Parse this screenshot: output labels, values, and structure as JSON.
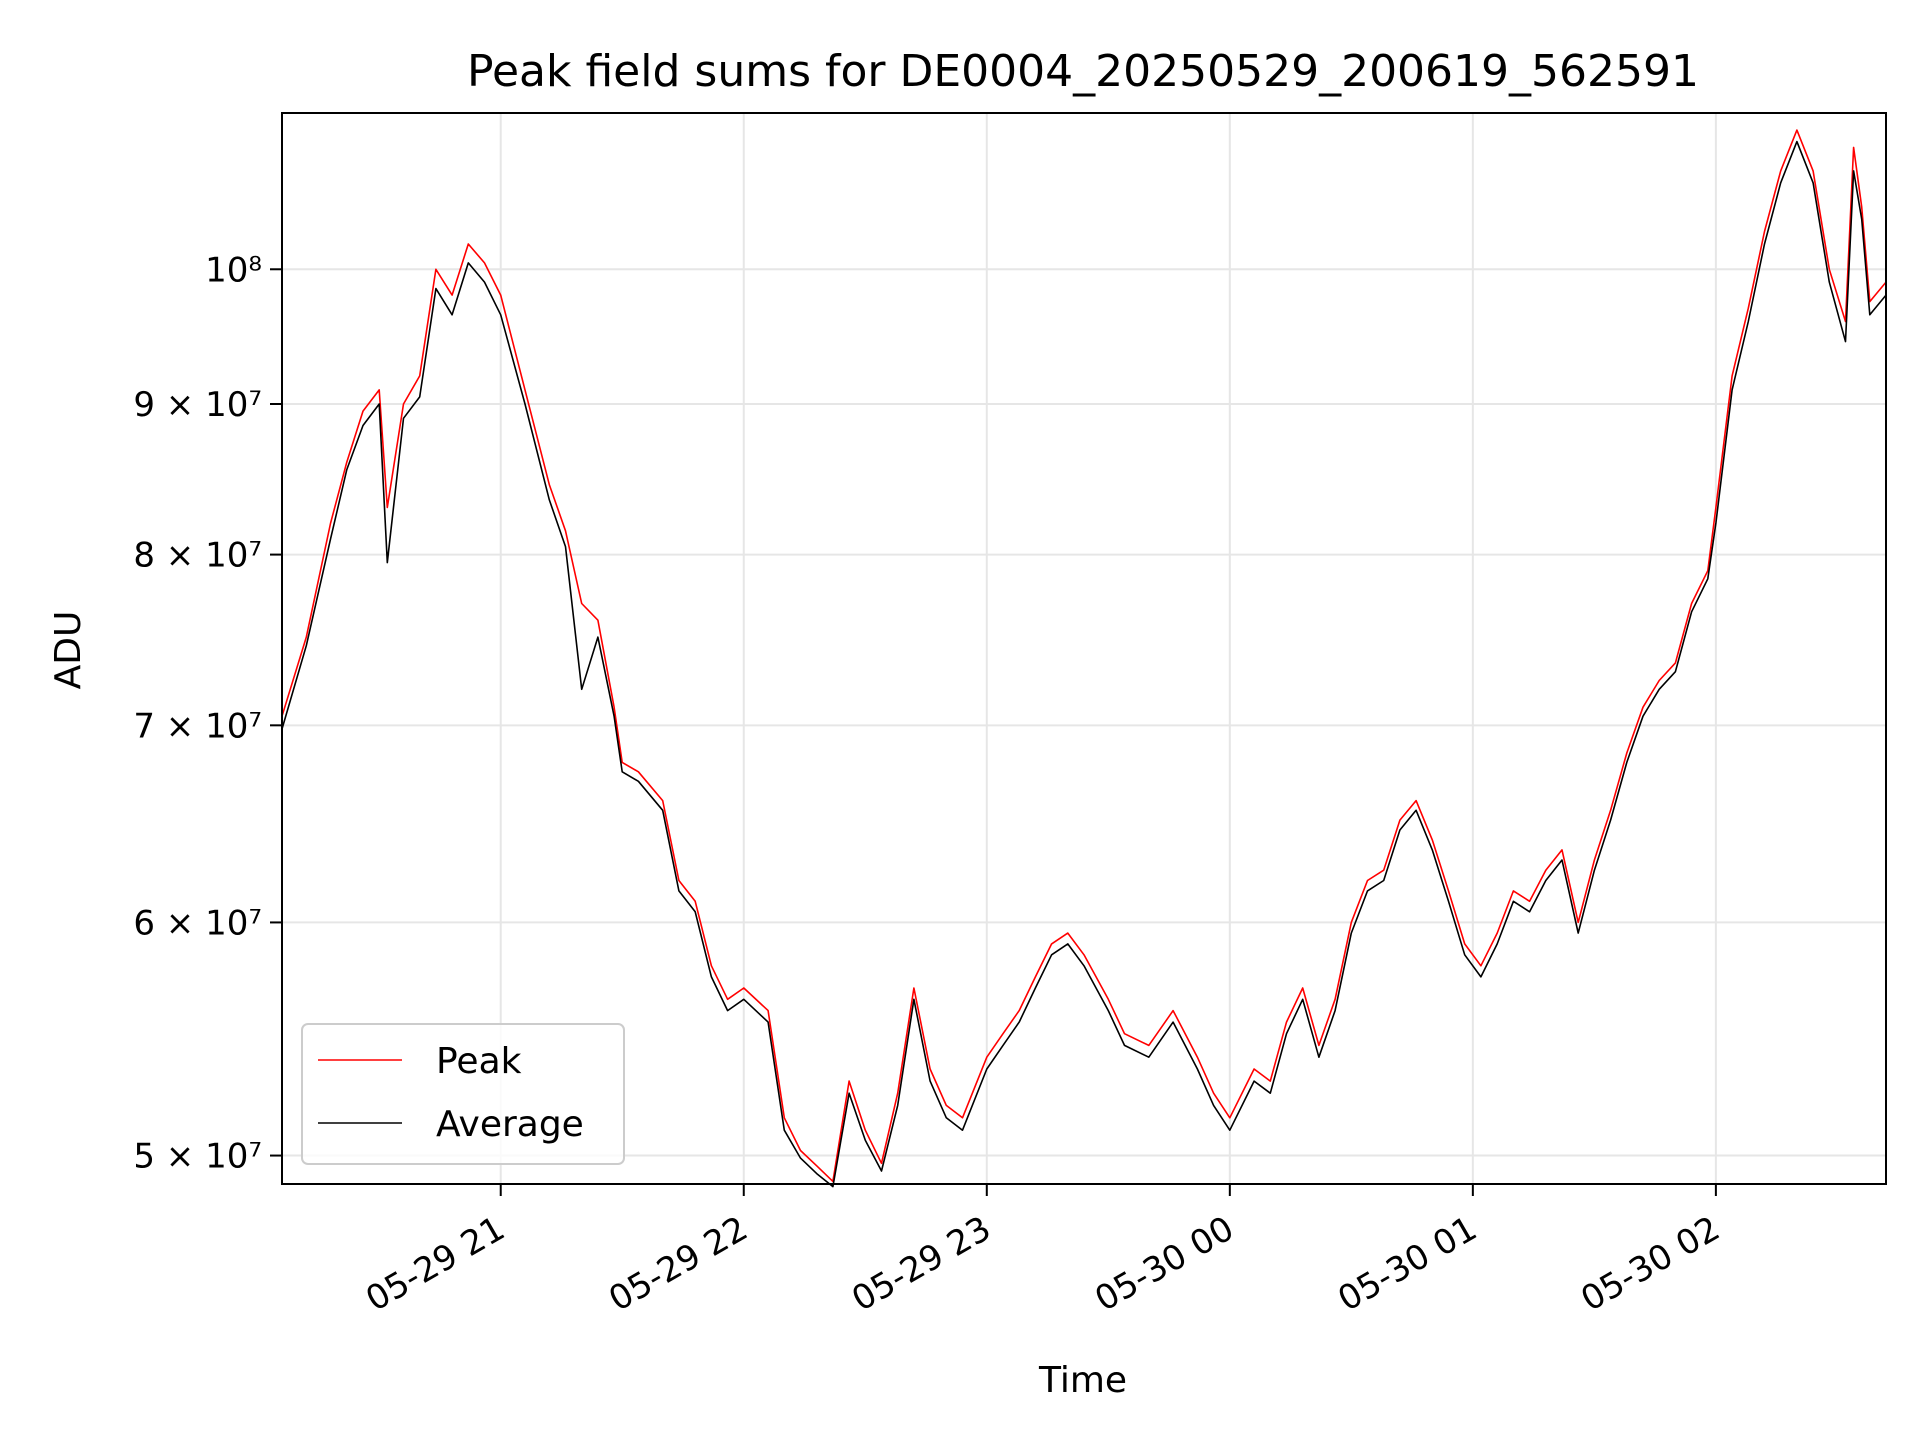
{
  "chart_data": {
    "type": "line",
    "title": "Peak field sums for DE0004_20250529_200619_562591",
    "xlabel": "Time",
    "ylabel": "ADU",
    "yscale": "log",
    "grid": true,
    "legend_position": "lower-left",
    "xlim": [
      "2025-05-29 20:06",
      "2025-05-30 02:42"
    ],
    "ylim": [
      48900000,
      113000000
    ],
    "x_ticks": [
      {
        "time": "2025-05-29 21:00",
        "label": "05-29 21"
      },
      {
        "time": "2025-05-29 22:00",
        "label": "05-29 22"
      },
      {
        "time": "2025-05-29 23:00",
        "label": "05-29 23"
      },
      {
        "time": "2025-05-30 00:00",
        "label": "05-30 00"
      },
      {
        "time": "2025-05-30 01:00",
        "label": "05-30 01"
      },
      {
        "time": "2025-05-30 02:00",
        "label": "05-30 02"
      }
    ],
    "y_ticks": [
      {
        "value": 50000000,
        "label": "5 × 10⁷"
      },
      {
        "value": 60000000,
        "label": "6 × 10⁷"
      },
      {
        "value": 70000000,
        "label": "7 × 10⁷"
      },
      {
        "value": 80000000,
        "label": "8 × 10⁷"
      },
      {
        "value": 90000000,
        "label": "9 × 10⁷"
      },
      {
        "value": 100000000,
        "label": "10⁸"
      }
    ],
    "series": [
      {
        "name": "Peak",
        "color": "#ff0000",
        "points": [
          [
            "2025-05-29 20:06",
            70500000
          ],
          [
            "2025-05-29 20:12",
            75000000
          ],
          [
            "2025-05-29 20:18",
            82000000
          ],
          [
            "2025-05-29 20:22",
            86000000
          ],
          [
            "2025-05-29 20:26",
            89500000
          ],
          [
            "2025-05-29 20:30",
            91000000
          ],
          [
            "2025-05-29 20:32",
            83000000
          ],
          [
            "2025-05-29 20:36",
            90000000
          ],
          [
            "2025-05-29 20:40",
            92000000
          ],
          [
            "2025-05-29 20:44",
            100000000
          ],
          [
            "2025-05-29 20:48",
            98000000
          ],
          [
            "2025-05-29 20:52",
            102000000
          ],
          [
            "2025-05-29 20:56",
            100500000
          ],
          [
            "2025-05-29 21:00",
            98000000
          ],
          [
            "2025-05-29 21:06",
            91000000
          ],
          [
            "2025-05-29 21:12",
            84500000
          ],
          [
            "2025-05-29 21:16",
            81500000
          ],
          [
            "2025-05-29 21:20",
            77000000
          ],
          [
            "2025-05-29 21:24",
            76000000
          ],
          [
            "2025-05-29 21:28",
            71000000
          ],
          [
            "2025-05-29 21:30",
            68000000
          ],
          [
            "2025-05-29 21:34",
            67500000
          ],
          [
            "2025-05-29 21:40",
            66000000
          ],
          [
            "2025-05-29 21:44",
            62000000
          ],
          [
            "2025-05-29 21:48",
            61000000
          ],
          [
            "2025-05-29 21:52",
            58000000
          ],
          [
            "2025-05-29 21:56",
            56500000
          ],
          [
            "2025-05-29 22:00",
            57000000
          ],
          [
            "2025-05-29 22:06",
            56000000
          ],
          [
            "2025-05-29 22:10",
            51500000
          ],
          [
            "2025-05-29 22:14",
            50200000
          ],
          [
            "2025-05-29 22:18",
            49600000
          ],
          [
            "2025-05-29 22:22",
            49000000
          ],
          [
            "2025-05-29 22:26",
            53000000
          ],
          [
            "2025-05-29 22:30",
            51000000
          ],
          [
            "2025-05-29 22:34",
            49700000
          ],
          [
            "2025-05-29 22:38",
            52500000
          ],
          [
            "2025-05-29 22:42",
            57000000
          ],
          [
            "2025-05-29 22:46",
            53500000
          ],
          [
            "2025-05-29 22:50",
            52000000
          ],
          [
            "2025-05-29 22:54",
            51500000
          ],
          [
            "2025-05-29 23:00",
            54000000
          ],
          [
            "2025-05-29 23:04",
            55000000
          ],
          [
            "2025-05-29 23:08",
            56000000
          ],
          [
            "2025-05-29 23:12",
            57500000
          ],
          [
            "2025-05-29 23:16",
            59000000
          ],
          [
            "2025-05-29 23:20",
            59500000
          ],
          [
            "2025-05-29 23:24",
            58500000
          ],
          [
            "2025-05-29 23:30",
            56500000
          ],
          [
            "2025-05-29 23:34",
            55000000
          ],
          [
            "2025-05-29 23:40",
            54500000
          ],
          [
            "2025-05-29 23:46",
            56000000
          ],
          [
            "2025-05-29 23:52",
            54000000
          ],
          [
            "2025-05-29 23:56",
            52500000
          ],
          [
            "2025-05-30 00:00",
            51500000
          ],
          [
            "2025-05-30 00:06",
            53500000
          ],
          [
            "2025-05-30 00:10",
            53000000
          ],
          [
            "2025-05-30 00:14",
            55500000
          ],
          [
            "2025-05-30 00:18",
            57000000
          ],
          [
            "2025-05-30 00:22",
            54500000
          ],
          [
            "2025-05-30 00:26",
            56500000
          ],
          [
            "2025-05-30 00:30",
            60000000
          ],
          [
            "2025-05-30 00:34",
            62000000
          ],
          [
            "2025-05-30 00:38",
            62500000
          ],
          [
            "2025-05-30 00:42",
            65000000
          ],
          [
            "2025-05-30 00:46",
            66000000
          ],
          [
            "2025-05-30 00:50",
            64000000
          ],
          [
            "2025-05-30 00:54",
            61500000
          ],
          [
            "2025-05-30 00:58",
            59000000
          ],
          [
            "2025-05-30 01:02",
            58000000
          ],
          [
            "2025-05-30 01:06",
            59500000
          ],
          [
            "2025-05-30 01:10",
            61500000
          ],
          [
            "2025-05-30 01:14",
            61000000
          ],
          [
            "2025-05-30 01:18",
            62500000
          ],
          [
            "2025-05-30 01:22",
            63500000
          ],
          [
            "2025-05-30 01:26",
            60000000
          ],
          [
            "2025-05-30 01:30",
            63000000
          ],
          [
            "2025-05-30 01:34",
            65500000
          ],
          [
            "2025-05-30 01:38",
            68500000
          ],
          [
            "2025-05-30 01:42",
            71000000
          ],
          [
            "2025-05-30 01:46",
            72500000
          ],
          [
            "2025-05-30 01:50",
            73500000
          ],
          [
            "2025-05-30 01:54",
            77000000
          ],
          [
            "2025-05-30 01:58",
            79000000
          ],
          [
            "2025-05-30 02:00",
            83000000
          ],
          [
            "2025-05-30 02:04",
            92000000
          ],
          [
            "2025-05-30 02:08",
            97000000
          ],
          [
            "2025-05-30 02:12",
            103000000
          ],
          [
            "2025-05-30 02:16",
            108000000
          ],
          [
            "2025-05-30 02:20",
            111500000
          ],
          [
            "2025-05-30 02:24",
            108000000
          ],
          [
            "2025-05-30 02:28",
            100000000
          ],
          [
            "2025-05-30 02:32",
            96000000
          ],
          [
            "2025-05-30 02:34",
            110000000
          ],
          [
            "2025-05-30 02:36",
            105000000
          ],
          [
            "2025-05-30 02:38",
            97500000
          ],
          [
            "2025-05-30 02:42",
            99000000
          ]
        ]
      },
      {
        "name": "Average",
        "color": "#000000",
        "points": [
          [
            "2025-05-29 20:06",
            69800000
          ],
          [
            "2025-05-29 20:12",
            74500000
          ],
          [
            "2025-05-29 20:18",
            81000000
          ],
          [
            "2025-05-29 20:22",
            85500000
          ],
          [
            "2025-05-29 20:26",
            88500000
          ],
          [
            "2025-05-29 20:30",
            90000000
          ],
          [
            "2025-05-29 20:32",
            79500000
          ],
          [
            "2025-05-29 20:36",
            89000000
          ],
          [
            "2025-05-29 20:40",
            90500000
          ],
          [
            "2025-05-29 20:44",
            98500000
          ],
          [
            "2025-05-29 20:48",
            96500000
          ],
          [
            "2025-05-29 20:52",
            100500000
          ],
          [
            "2025-05-29 20:56",
            99000000
          ],
          [
            "2025-05-29 21:00",
            96500000
          ],
          [
            "2025-05-29 21:06",
            90000000
          ],
          [
            "2025-05-29 21:12",
            83500000
          ],
          [
            "2025-05-29 21:16",
            80500000
          ],
          [
            "2025-05-29 21:20",
            72000000
          ],
          [
            "2025-05-29 21:24",
            75000000
          ],
          [
            "2025-05-29 21:28",
            70500000
          ],
          [
            "2025-05-29 21:30",
            67500000
          ],
          [
            "2025-05-29 21:34",
            67000000
          ],
          [
            "2025-05-29 21:40",
            65500000
          ],
          [
            "2025-05-29 21:44",
            61500000
          ],
          [
            "2025-05-29 21:48",
            60500000
          ],
          [
            "2025-05-29 21:52",
            57500000
          ],
          [
            "2025-05-29 21:56",
            56000000
          ],
          [
            "2025-05-29 22:00",
            56500000
          ],
          [
            "2025-05-29 22:06",
            55500000
          ],
          [
            "2025-05-29 22:10",
            51000000
          ],
          [
            "2025-05-29 22:14",
            49900000
          ],
          [
            "2025-05-29 22:18",
            49300000
          ],
          [
            "2025-05-29 22:22",
            48800000
          ],
          [
            "2025-05-29 22:26",
            52500000
          ],
          [
            "2025-05-29 22:30",
            50600000
          ],
          [
            "2025-05-29 22:34",
            49400000
          ],
          [
            "2025-05-29 22:38",
            52000000
          ],
          [
            "2025-05-29 22:42",
            56500000
          ],
          [
            "2025-05-29 22:46",
            53000000
          ],
          [
            "2025-05-29 22:50",
            51500000
          ],
          [
            "2025-05-29 22:54",
            51000000
          ],
          [
            "2025-05-29 23:00",
            53500000
          ],
          [
            "2025-05-29 23:04",
            54500000
          ],
          [
            "2025-05-29 23:08",
            55500000
          ],
          [
            "2025-05-29 23:12",
            57000000
          ],
          [
            "2025-05-29 23:16",
            58500000
          ],
          [
            "2025-05-29 23:20",
            59000000
          ],
          [
            "2025-05-29 23:24",
            58000000
          ],
          [
            "2025-05-29 23:30",
            56000000
          ],
          [
            "2025-05-29 23:34",
            54500000
          ],
          [
            "2025-05-29 23:40",
            54000000
          ],
          [
            "2025-05-29 23:46",
            55500000
          ],
          [
            "2025-05-29 23:52",
            53500000
          ],
          [
            "2025-05-29 23:56",
            52000000
          ],
          [
            "2025-05-30 00:00",
            51000000
          ],
          [
            "2025-05-30 00:06",
            53000000
          ],
          [
            "2025-05-30 00:10",
            52500000
          ],
          [
            "2025-05-30 00:14",
            55000000
          ],
          [
            "2025-05-30 00:18",
            56500000
          ],
          [
            "2025-05-30 00:22",
            54000000
          ],
          [
            "2025-05-30 00:26",
            56000000
          ],
          [
            "2025-05-30 00:30",
            59500000
          ],
          [
            "2025-05-30 00:34",
            61500000
          ],
          [
            "2025-05-30 00:38",
            62000000
          ],
          [
            "2025-05-30 00:42",
            64500000
          ],
          [
            "2025-05-30 00:46",
            65500000
          ],
          [
            "2025-05-30 00:50",
            63500000
          ],
          [
            "2025-05-30 00:54",
            61000000
          ],
          [
            "2025-05-30 00:58",
            58500000
          ],
          [
            "2025-05-30 01:02",
            57500000
          ],
          [
            "2025-05-30 01:06",
            59000000
          ],
          [
            "2025-05-30 01:10",
            61000000
          ],
          [
            "2025-05-30 01:14",
            60500000
          ],
          [
            "2025-05-30 01:18",
            62000000
          ],
          [
            "2025-05-30 01:22",
            63000000
          ],
          [
            "2025-05-30 01:26",
            59500000
          ],
          [
            "2025-05-30 01:30",
            62500000
          ],
          [
            "2025-05-30 01:34",
            65000000
          ],
          [
            "2025-05-30 01:38",
            68000000
          ],
          [
            "2025-05-30 01:42",
            70500000
          ],
          [
            "2025-05-30 01:46",
            72000000
          ],
          [
            "2025-05-30 01:50",
            73000000
          ],
          [
            "2025-05-30 01:54",
            76500000
          ],
          [
            "2025-05-30 01:58",
            78500000
          ],
          [
            "2025-05-30 02:00",
            82000000
          ],
          [
            "2025-05-30 02:04",
            91000000
          ],
          [
            "2025-05-30 02:08",
            96000000
          ],
          [
            "2025-05-30 02:12",
            102000000
          ],
          [
            "2025-05-30 02:16",
            107000000
          ],
          [
            "2025-05-30 02:20",
            110500000
          ],
          [
            "2025-05-30 02:24",
            107000000
          ],
          [
            "2025-05-30 02:28",
            99000000
          ],
          [
            "2025-05-30 02:32",
            94500000
          ],
          [
            "2025-05-30 02:34",
            108000000
          ],
          [
            "2025-05-30 02:36",
            104000000
          ],
          [
            "2025-05-30 02:38",
            96500000
          ],
          [
            "2025-05-30 02:42",
            98000000
          ]
        ]
      }
    ]
  }
}
